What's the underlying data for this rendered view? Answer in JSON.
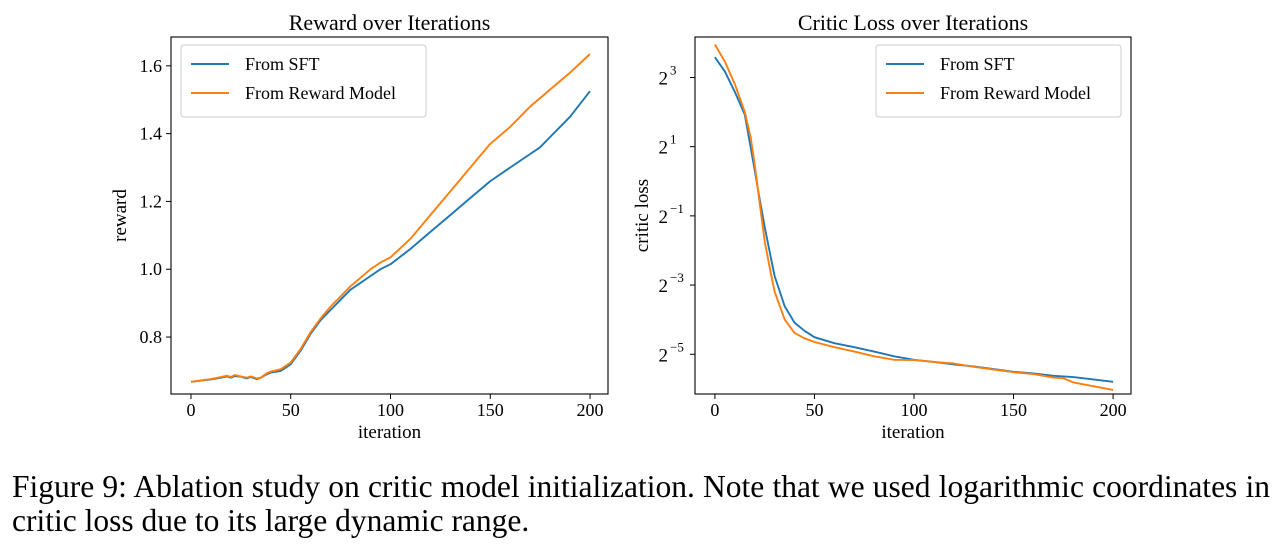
{
  "colors": {
    "sft": "#1f77b4",
    "rm": "#ff7f0e"
  },
  "chart_data": [
    {
      "type": "line",
      "title": "Reward over Iterations",
      "xlabel": "iteration",
      "ylabel": "reward",
      "xlim": [
        -10,
        209
      ],
      "ylim": [
        0.632,
        1.685
      ],
      "xticks": [
        0,
        50,
        100,
        150,
        200
      ],
      "xtick_labels": [
        "0",
        "50",
        "100",
        "150",
        "200"
      ],
      "yticks": [
        0.8,
        1.0,
        1.2,
        1.4,
        1.6
      ],
      "ytick_labels": [
        "0.8",
        "1.0",
        "1.2",
        "1.4",
        "1.6"
      ],
      "grid": false,
      "legend_position": "top-left",
      "series": [
        {
          "name": "From SFT",
          "color": "#1f77b4",
          "x": [
            0,
            10,
            15,
            18,
            20,
            22,
            25,
            28,
            30,
            33,
            35,
            38,
            40,
            45,
            50,
            55,
            60,
            65,
            70,
            75,
            80,
            85,
            90,
            95,
            100,
            110,
            120,
            130,
            140,
            150,
            160,
            170,
            175,
            180,
            190,
            200
          ],
          "y": [
            0.668,
            0.675,
            0.68,
            0.684,
            0.68,
            0.685,
            0.683,
            0.678,
            0.682,
            0.676,
            0.68,
            0.69,
            0.695,
            0.7,
            0.72,
            0.76,
            0.81,
            0.85,
            0.88,
            0.91,
            0.94,
            0.96,
            0.98,
            1.0,
            1.015,
            1.06,
            1.11,
            1.16,
            1.21,
            1.26,
            1.3,
            1.34,
            1.36,
            1.39,
            1.45,
            1.525
          ]
        },
        {
          "name": "From Reward Model",
          "color": "#ff7f0e",
          "x": [
            0,
            10,
            15,
            18,
            20,
            22,
            25,
            28,
            30,
            33,
            35,
            38,
            40,
            45,
            50,
            55,
            60,
            65,
            70,
            75,
            80,
            85,
            90,
            95,
            100,
            110,
            120,
            130,
            140,
            150,
            160,
            170,
            175,
            180,
            190,
            200
          ],
          "y": [
            0.668,
            0.676,
            0.682,
            0.686,
            0.682,
            0.688,
            0.684,
            0.68,
            0.684,
            0.678,
            0.68,
            0.693,
            0.698,
            0.705,
            0.725,
            0.765,
            0.815,
            0.855,
            0.89,
            0.92,
            0.95,
            0.975,
            1.0,
            1.02,
            1.035,
            1.09,
            1.16,
            1.23,
            1.3,
            1.37,
            1.42,
            1.48,
            1.505,
            1.53,
            1.58,
            1.635
          ]
        }
      ]
    },
    {
      "type": "line",
      "title": "Critic Loss over Iterations",
      "xlabel": "iteration",
      "ylabel": "critic loss",
      "yscale": "log2",
      "xlim": [
        -10,
        209
      ],
      "ylim": [
        0.0141,
        18
      ],
      "xticks": [
        0,
        50,
        100,
        150,
        200
      ],
      "xtick_labels": [
        "0",
        "50",
        "100",
        "150",
        "200"
      ],
      "ytick_values": [
        8,
        2,
        0.5,
        0.125,
        0.03125
      ],
      "ytick_base": "2",
      "ytick_exponents": [
        "3",
        "1",
        "−1",
        "−3",
        "−5"
      ],
      "grid": false,
      "legend_position": "top-right",
      "series": [
        {
          "name": "From SFT",
          "color": "#1f77b4",
          "x": [
            0,
            5,
            10,
            15,
            20,
            22,
            25,
            28,
            30,
            35,
            40,
            45,
            50,
            60,
            70,
            80,
            90,
            100,
            110,
            120,
            130,
            140,
            150,
            160,
            170,
            180,
            190,
            200
          ],
          "y": [
            12,
            9,
            6,
            3.8,
            1.25,
            0.78,
            0.4,
            0.22,
            0.15,
            0.082,
            0.059,
            0.05,
            0.044,
            0.039,
            0.036,
            0.033,
            0.03,
            0.028,
            0.0268,
            0.0255,
            0.0245,
            0.0232,
            0.022,
            0.0213,
            0.0203,
            0.0198,
            0.0189,
            0.018
          ]
        },
        {
          "name": "From Reward Model",
          "color": "#ff7f0e",
          "x": [
            0,
            5,
            10,
            15,
            18,
            20,
            22,
            25,
            28,
            30,
            35,
            40,
            45,
            50,
            60,
            70,
            80,
            90,
            100,
            110,
            120,
            130,
            140,
            150,
            160,
            170,
            175,
            180,
            190,
            200
          ],
          "y": [
            15.5,
            11,
            7,
            4.0,
            2.4,
            1.4,
            0.75,
            0.3,
            0.16,
            0.11,
            0.063,
            0.048,
            0.043,
            0.04,
            0.036,
            0.033,
            0.03,
            0.028,
            0.0278,
            0.0268,
            0.026,
            0.0243,
            0.023,
            0.0218,
            0.021,
            0.0196,
            0.0193,
            0.0178,
            0.0165,
            0.0153
          ]
        }
      ]
    }
  ],
  "caption": "Figure 9:  Ablation study on critic model initialization.  Note that we used logarithmic coordinates in critic loss due to its large dynamic range."
}
